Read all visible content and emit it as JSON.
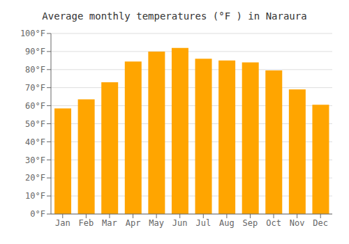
{
  "chart_data": {
    "type": "bar",
    "title": "Average monthly temperatures (°F ) in Naraura",
    "categories": [
      "Jan",
      "Feb",
      "Mar",
      "Apr",
      "May",
      "Jun",
      "Jul",
      "Aug",
      "Sep",
      "Oct",
      "Nov",
      "Dec"
    ],
    "values": [
      58.5,
      63.5,
      73.0,
      84.5,
      90.0,
      92.0,
      86.0,
      85.0,
      84.0,
      79.5,
      69.0,
      60.5
    ],
    "color": "#FFA500",
    "ylim": [
      0,
      100
    ],
    "yticks": [
      {
        "value": 0,
        "label": "0°F"
      },
      {
        "value": 10,
        "label": "10°F"
      },
      {
        "value": 20,
        "label": "20°F"
      },
      {
        "value": 30,
        "label": "30°F"
      },
      {
        "value": 40,
        "label": "40°F"
      },
      {
        "value": 50,
        "label": "50°F"
      },
      {
        "value": 60,
        "label": "60°F"
      },
      {
        "value": 70,
        "label": "70°F"
      },
      {
        "value": 80,
        "label": "80°F"
      },
      {
        "value": 90,
        "label": "90°F"
      },
      {
        "value": 100,
        "label": "100°F"
      }
    ],
    "grid": true
  }
}
